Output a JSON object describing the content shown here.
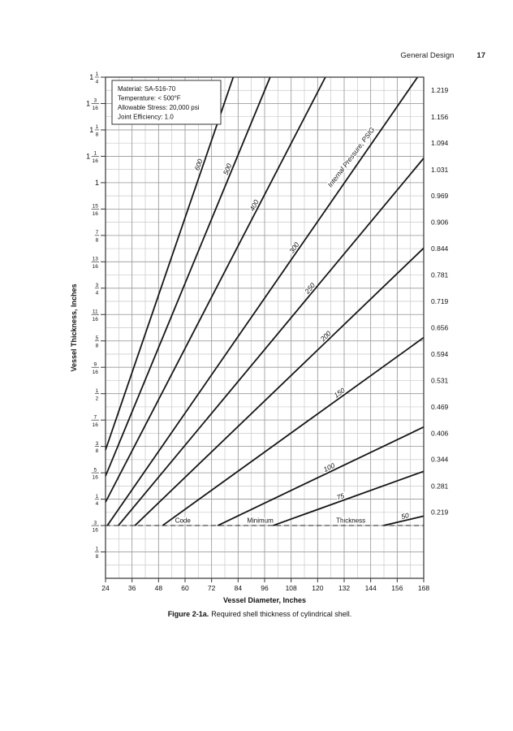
{
  "page": {
    "header_right": "General Design",
    "page_number": "17",
    "caption_label": "Figure 2-1a.",
    "caption_text": "Required shell thickness of cylindrical shell."
  },
  "chart_data": {
    "type": "line",
    "title": "",
    "xlabel": "Vessel Diameter, Inches",
    "ylabel": "Vessel Thickness, Inches",
    "xlim": [
      24,
      168
    ],
    "ylim": [
      0.0625,
      1.25
    ],
    "grid": {
      "on": true,
      "x_minor_step": 6,
      "x_major_step": 12,
      "y_minor_step": 0.03125,
      "y_major_step": 0.0625
    },
    "x_ticks": [
      24,
      36,
      48,
      60,
      72,
      84,
      96,
      108,
      120,
      132,
      144,
      156,
      168
    ],
    "y_ticks_left": [
      "1 1/4",
      "1 3/16",
      "1 1/8",
      "1 1/16",
      "1",
      "15/16",
      "7/8",
      "13/16",
      "3/4",
      "11/16",
      "5/8",
      "9/16",
      "1/2",
      "7/16",
      "3/8",
      "5/16",
      "1/4",
      "3/16",
      "1/8"
    ],
    "y_ticks_right": [
      "1.219",
      "1.156",
      "1.094",
      "1.031",
      "0.969",
      "0.906",
      "0.844",
      "0.781",
      "0.719",
      "0.656",
      "0.594",
      "0.531",
      "0.469",
      "0.406",
      "0.344",
      "0.281",
      "0.219"
    ],
    "annotation_box": {
      "lines": [
        "Material: SA-516-70",
        "Temperature: < 500°F",
        "Allowable Stress: 20,000 psi",
        "Joint Efficiency: 1.0"
      ]
    },
    "pressure_axis_label": {
      "text": "Internal Pressure, PSIG",
      "x": 136,
      "y": 1.057,
      "angle": -53
    },
    "series_units": "PSIG",
    "series": [
      {
        "name": "600",
        "x1": 24,
        "y1": 0.3666,
        "x2": 81.8,
        "y2": 1.25,
        "label_at": 68
      },
      {
        "name": "500",
        "x1": 24,
        "y1": 0.3046,
        "x2": 98.5,
        "y2": 1.25,
        "label_at": 81
      },
      {
        "name": "400",
        "x1": 24,
        "y1": 0.2429,
        "x2": 123.5,
        "y2": 1.25,
        "label_at": 93
      },
      {
        "name": "300",
        "x1": 24.8,
        "y1": 0.1875,
        "x2": 165.2,
        "y2": 1.25,
        "label_at": 111
      },
      {
        "name": "250",
        "x1": 29.8,
        "y1": 0.1875,
        "x2": 168,
        "y2": 1.058,
        "label_at": 118
      },
      {
        "name": "200",
        "x1": 37.3,
        "y1": 0.1875,
        "x2": 168,
        "y2": 0.845,
        "label_at": 125
      },
      {
        "name": "150",
        "x1": 49.8,
        "y1": 0.1875,
        "x2": 168,
        "y2": 0.633,
        "label_at": 131
      },
      {
        "name": "100",
        "x1": 74.8,
        "y1": 0.1875,
        "x2": 168,
        "y2": 0.421,
        "label_at": 126
      },
      {
        "name": "75",
        "x1": 99.8,
        "y1": 0.1875,
        "x2": 168,
        "y2": 0.316,
        "label_at": 131
      },
      {
        "name": "50",
        "x1": 149.8,
        "y1": 0.1875,
        "x2": 168,
        "y2": 0.21,
        "label_at": 160
      }
    ],
    "code_minimum": {
      "value": 0.1875,
      "labels": [
        {
          "text": "Code",
          "x": 59
        },
        {
          "text": "Minimum",
          "x": 94
        },
        {
          "text": "Thickness",
          "x": 135
        }
      ]
    }
  }
}
